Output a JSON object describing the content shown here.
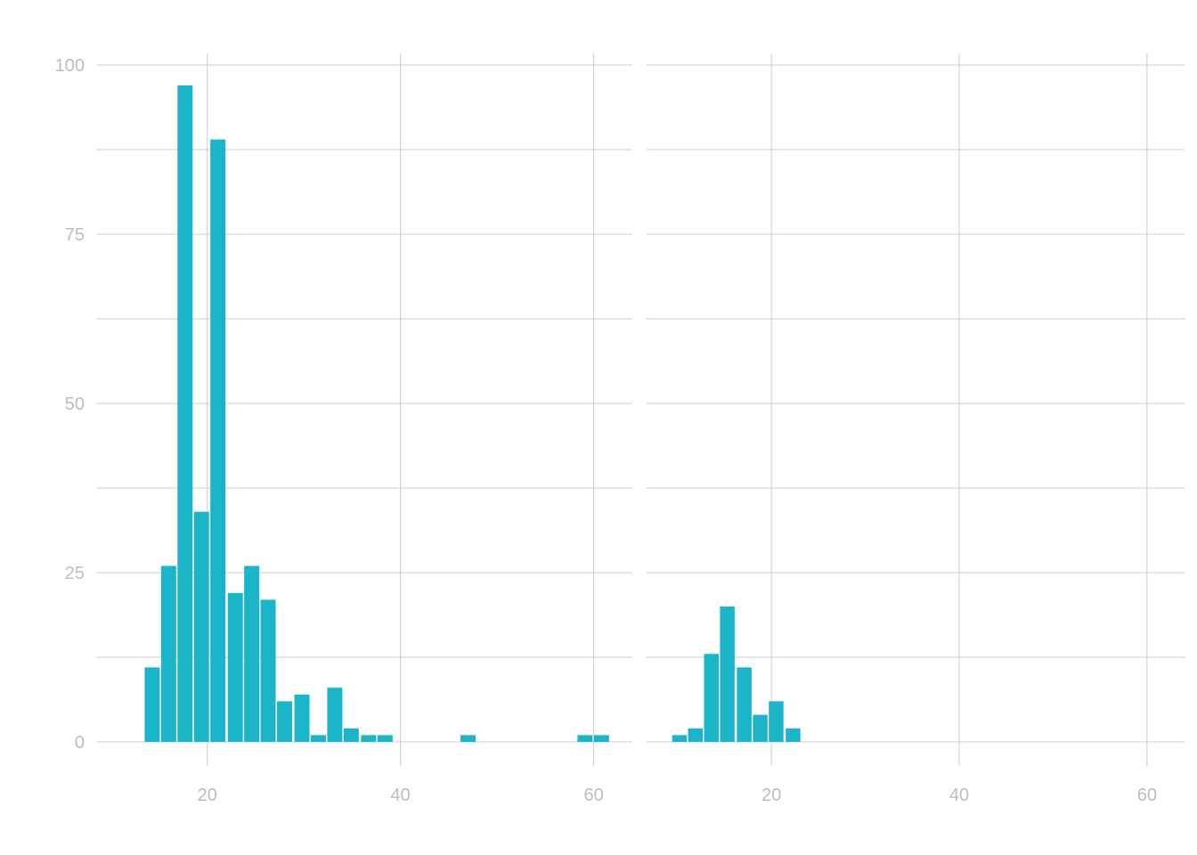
{
  "chart_data": [
    {
      "type": "bar",
      "panel": "left",
      "bin_width": 1.75,
      "xlim": [
        8.5,
        64
      ],
      "ylim": [
        -5,
        104
      ],
      "x_ticks": [
        20,
        40,
        60
      ],
      "x_tick_labels": [
        "20",
        "40",
        "60"
      ],
      "y_ticks": [
        0,
        25,
        50,
        75,
        100
      ],
      "y_tick_labels": [
        "0",
        "25",
        "50",
        "75",
        "100"
      ],
      "bins": [
        {
          "x": 14.3,
          "count": 11
        },
        {
          "x": 16.0,
          "count": 26
        },
        {
          "x": 17.7,
          "count": 97
        },
        {
          "x": 19.4,
          "count": 34
        },
        {
          "x": 21.1,
          "count": 89
        },
        {
          "x": 22.9,
          "count": 22
        },
        {
          "x": 24.6,
          "count": 26
        },
        {
          "x": 26.3,
          "count": 21
        },
        {
          "x": 28.0,
          "count": 6
        },
        {
          "x": 29.8,
          "count": 7
        },
        {
          "x": 31.5,
          "count": 1
        },
        {
          "x": 33.2,
          "count": 8
        },
        {
          "x": 34.9,
          "count": 2
        },
        {
          "x": 36.7,
          "count": 1
        },
        {
          "x": 38.4,
          "count": 1
        },
        {
          "x": 47.0,
          "count": 1
        },
        {
          "x": 59.1,
          "count": 1
        },
        {
          "x": 60.8,
          "count": 1
        }
      ],
      "grid": true,
      "bar_color": "#1bb5ca"
    },
    {
      "type": "bar",
      "panel": "right",
      "bin_width": 1.75,
      "xlim": [
        6.7,
        64
      ],
      "ylim": [
        -5,
        104
      ],
      "x_ticks": [
        20,
        40,
        60
      ],
      "x_tick_labels": [
        "20",
        "40",
        "60"
      ],
      "bins": [
        {
          "x": 10.2,
          "count": 1
        },
        {
          "x": 11.9,
          "count": 2
        },
        {
          "x": 13.6,
          "count": 13
        },
        {
          "x": 15.3,
          "count": 20
        },
        {
          "x": 17.1,
          "count": 11
        },
        {
          "x": 18.8,
          "count": 4
        },
        {
          "x": 20.5,
          "count": 6
        },
        {
          "x": 22.3,
          "count": 2
        }
      ],
      "grid": true,
      "bar_color": "#1bb5ca"
    }
  ]
}
